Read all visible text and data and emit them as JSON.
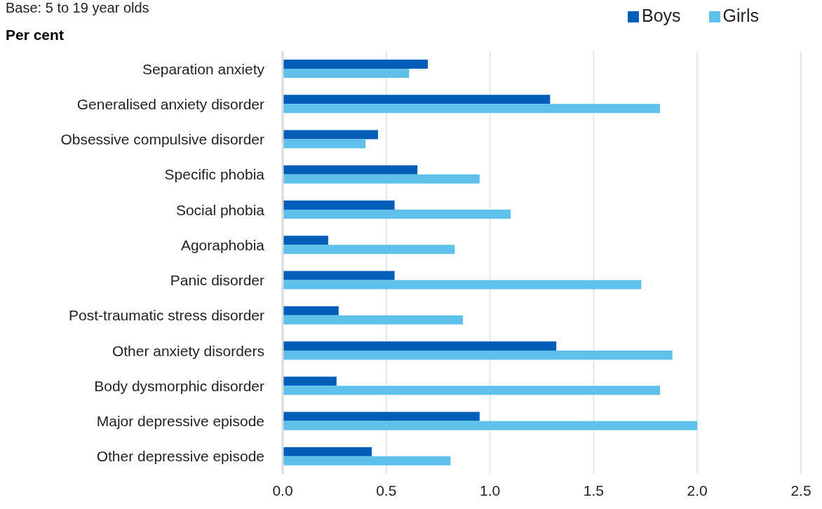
{
  "chart_data": {
    "type": "bar",
    "orientation": "horizontal",
    "annotations": [
      "Base: 5 to 19 year olds"
    ],
    "xlabel": "Per cent",
    "categories": [
      "Separation anxiety",
      "Generalised anxiety disorder",
      "Obsessive compulsive disorder",
      "Specific phobia",
      "Social phobia",
      "Agoraphobia",
      "Panic disorder",
      "Post-traumatic stress disorder",
      "Other anxiety disorders",
      "Body dysmorphic disorder",
      "Major depressive episode",
      "Other depressive episode"
    ],
    "series": [
      {
        "name": "Boys",
        "color": "#005eb8",
        "values": [
          0.7,
          1.29,
          0.46,
          0.65,
          0.54,
          0.22,
          0.54,
          0.27,
          1.32,
          0.26,
          0.95,
          0.43
        ]
      },
      {
        "name": "Girls",
        "color": "#5fc1ea",
        "values": [
          0.61,
          1.82,
          0.4,
          0.95,
          1.1,
          0.83,
          1.73,
          0.87,
          1.88,
          1.82,
          2.0,
          0.81
        ]
      }
    ],
    "xlim": [
      0,
      2.5
    ],
    "xticks": [
      {
        "value": 0,
        "label": "0.0"
      },
      {
        "value": 0.5,
        "label": "0.5"
      },
      {
        "value": 1,
        "label": "1.0"
      },
      {
        "value": 1.5,
        "label": "1.5"
      },
      {
        "value": 2,
        "label": "2.0"
      },
      {
        "value": 2.5,
        "label": "2.5"
      }
    ],
    "grid": "x",
    "legend": "top right"
  }
}
